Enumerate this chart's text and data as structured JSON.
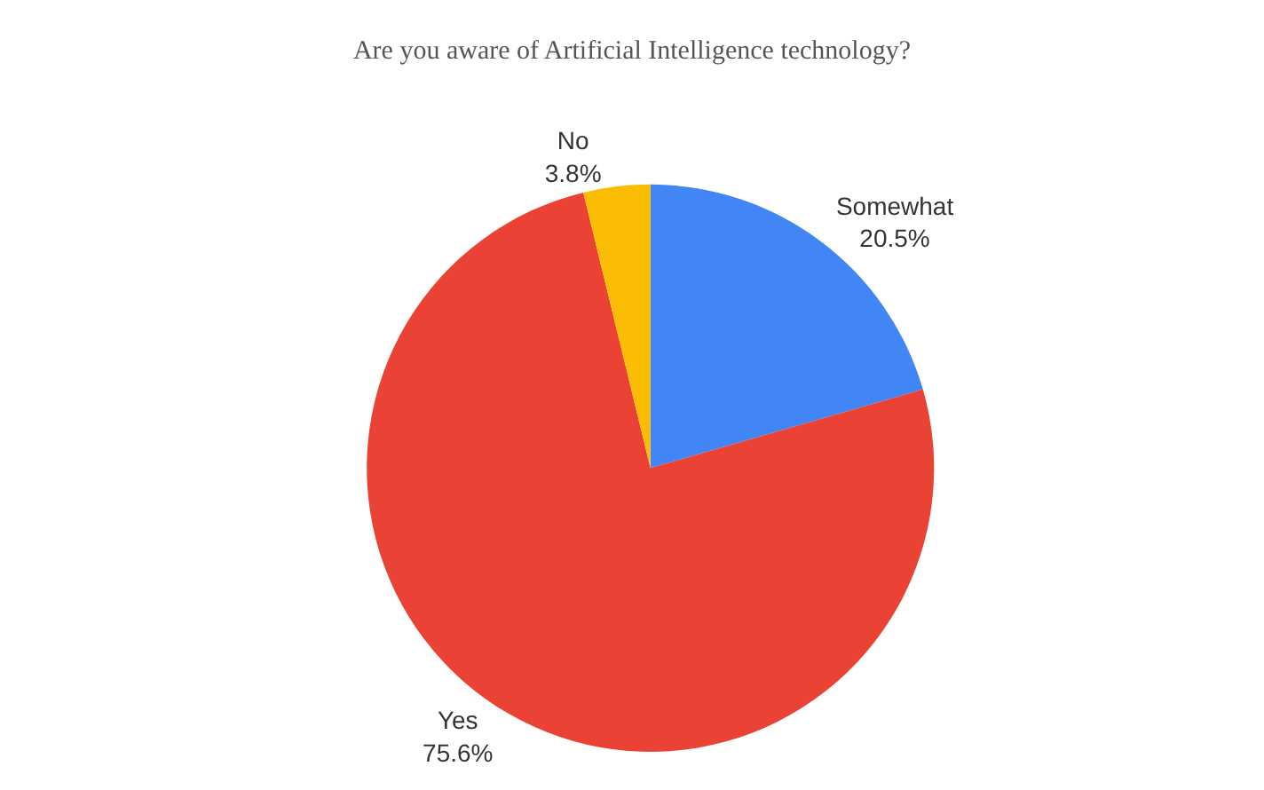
{
  "chart_data": {
    "type": "pie",
    "title": "Are you aware of Artificial Intelligence technology?",
    "categories": [
      "Somewhat",
      "Yes",
      "No"
    ],
    "values": [
      20.5,
      75.6,
      3.8
    ],
    "colors": [
      "#4285f4",
      "#ea4335",
      "#fbbc04"
    ],
    "value_labels": [
      "20.5%",
      "75.6%",
      "3.8%"
    ],
    "legend": false
  }
}
